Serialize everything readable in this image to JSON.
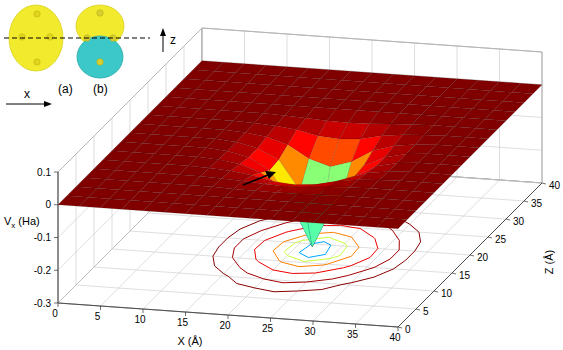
{
  "chart_data": {
    "type": "surface",
    "xlabel": "X (Å)",
    "ylabel": "Z (Å)",
    "zlabel": {
      "base": "V",
      "subscript": "x",
      "rest": "(Ha)"
    },
    "annotations": [
      "(a)",
      "(b)",
      "x",
      "z"
    ],
    "xlim": [
      0,
      40
    ],
    "xticks": [
      0,
      5,
      10,
      15,
      20,
      25,
      30,
      35,
      40
    ],
    "ylim": [
      0,
      40
    ],
    "yticks": [
      0,
      5,
      10,
      15,
      20,
      25,
      30,
      35,
      40
    ],
    "zlim": [
      -0.3,
      0.1
    ],
    "zticks": [
      -0.3,
      -0.2,
      -0.1,
      0,
      0.1
    ],
    "grid": true,
    "x": [
      0,
      2.5,
      5,
      7.5,
      10,
      12.5,
      15,
      17.5,
      20,
      22.5,
      25,
      27.5,
      30,
      32.5,
      35,
      37.5,
      40
    ],
    "y": [
      0,
      2.5,
      5,
      7.5,
      10,
      12.5,
      15,
      17.5,
      20,
      22.5,
      25,
      27.5,
      30,
      32.5,
      35,
      37.5,
      40
    ],
    "values": [
      [
        0,
        0,
        0,
        0,
        0,
        0,
        0,
        0,
        0,
        0,
        0,
        0,
        0,
        0,
        0,
        0,
        0
      ],
      [
        0,
        0,
        0,
        0,
        0,
        0,
        0,
        0,
        0,
        0,
        0,
        0,
        0,
        0,
        0,
        0,
        0
      ],
      [
        0,
        0,
        0,
        0,
        0,
        0,
        0,
        0,
        0,
        0,
        0,
        0,
        0,
        0,
        0,
        0,
        0
      ],
      [
        0,
        0,
        0,
        0,
        0,
        0,
        0,
        -0.002,
        -0.003,
        -0.004,
        -0.003,
        -0.002,
        0,
        0,
        0,
        0,
        0
      ],
      [
        0,
        0,
        0,
        0,
        0,
        0,
        -0.002,
        -0.005,
        -0.01,
        -0.012,
        -0.01,
        -0.005,
        -0.002,
        0,
        0,
        0,
        0
      ],
      [
        0,
        0,
        0,
        0,
        0,
        -0.002,
        -0.006,
        -0.015,
        -0.03,
        -0.035,
        -0.03,
        -0.015,
        -0.006,
        -0.002,
        0,
        0,
        0
      ],
      [
        0,
        0,
        0,
        0,
        0,
        -0.004,
        -0.013,
        -0.035,
        -0.075,
        -0.1,
        -0.075,
        -0.035,
        -0.013,
        -0.004,
        0,
        0,
        0
      ],
      [
        0,
        0,
        0,
        0,
        0,
        -0.005,
        -0.02,
        -0.055,
        -0.15,
        -0.28,
        -0.15,
        -0.055,
        -0.02,
        -0.005,
        0,
        0,
        0
      ],
      [
        0,
        0,
        0,
        0,
        0,
        -0.005,
        -0.02,
        -0.05,
        -0.14,
        -0.25,
        -0.14,
        -0.05,
        -0.02,
        -0.005,
        0,
        0,
        0
      ],
      [
        0,
        0,
        0,
        0,
        0,
        -0.004,
        -0.012,
        -0.032,
        -0.07,
        -0.09,
        -0.07,
        -0.032,
        -0.012,
        -0.004,
        0,
        0,
        0
      ],
      [
        0,
        0,
        0,
        0,
        0,
        -0.002,
        -0.006,
        -0.014,
        -0.028,
        -0.033,
        -0.028,
        -0.014,
        -0.006,
        -0.002,
        0,
        0,
        0
      ],
      [
        0,
        0,
        0,
        0,
        0,
        0,
        -0.002,
        -0.005,
        -0.009,
        -0.011,
        -0.009,
        -0.005,
        -0.002,
        0,
        0,
        0,
        0
      ],
      [
        0,
        0,
        0,
        0,
        0,
        0,
        0,
        0,
        0,
        0,
        0,
        0,
        0,
        0,
        0,
        0,
        0
      ],
      [
        0,
        0,
        0,
        0,
        0,
        0,
        0,
        0,
        0,
        0,
        0,
        0,
        0,
        0,
        0,
        0,
        0
      ],
      [
        0,
        0,
        0,
        0,
        0,
        0,
        0,
        0,
        0,
        0,
        0,
        0,
        0,
        0,
        0,
        0,
        0
      ],
      [
        0,
        0,
        0,
        0,
        0,
        0,
        0,
        0,
        0,
        0,
        0,
        0,
        0,
        0,
        0,
        0,
        0
      ],
      [
        0,
        0,
        0,
        0,
        0,
        0,
        0,
        0,
        0,
        0,
        0,
        0,
        0,
        0,
        0,
        0,
        0
      ]
    ],
    "contour_levels": [
      -0.2,
      -0.12,
      -0.07,
      -0.03,
      -0.01,
      -0.003
    ]
  }
}
